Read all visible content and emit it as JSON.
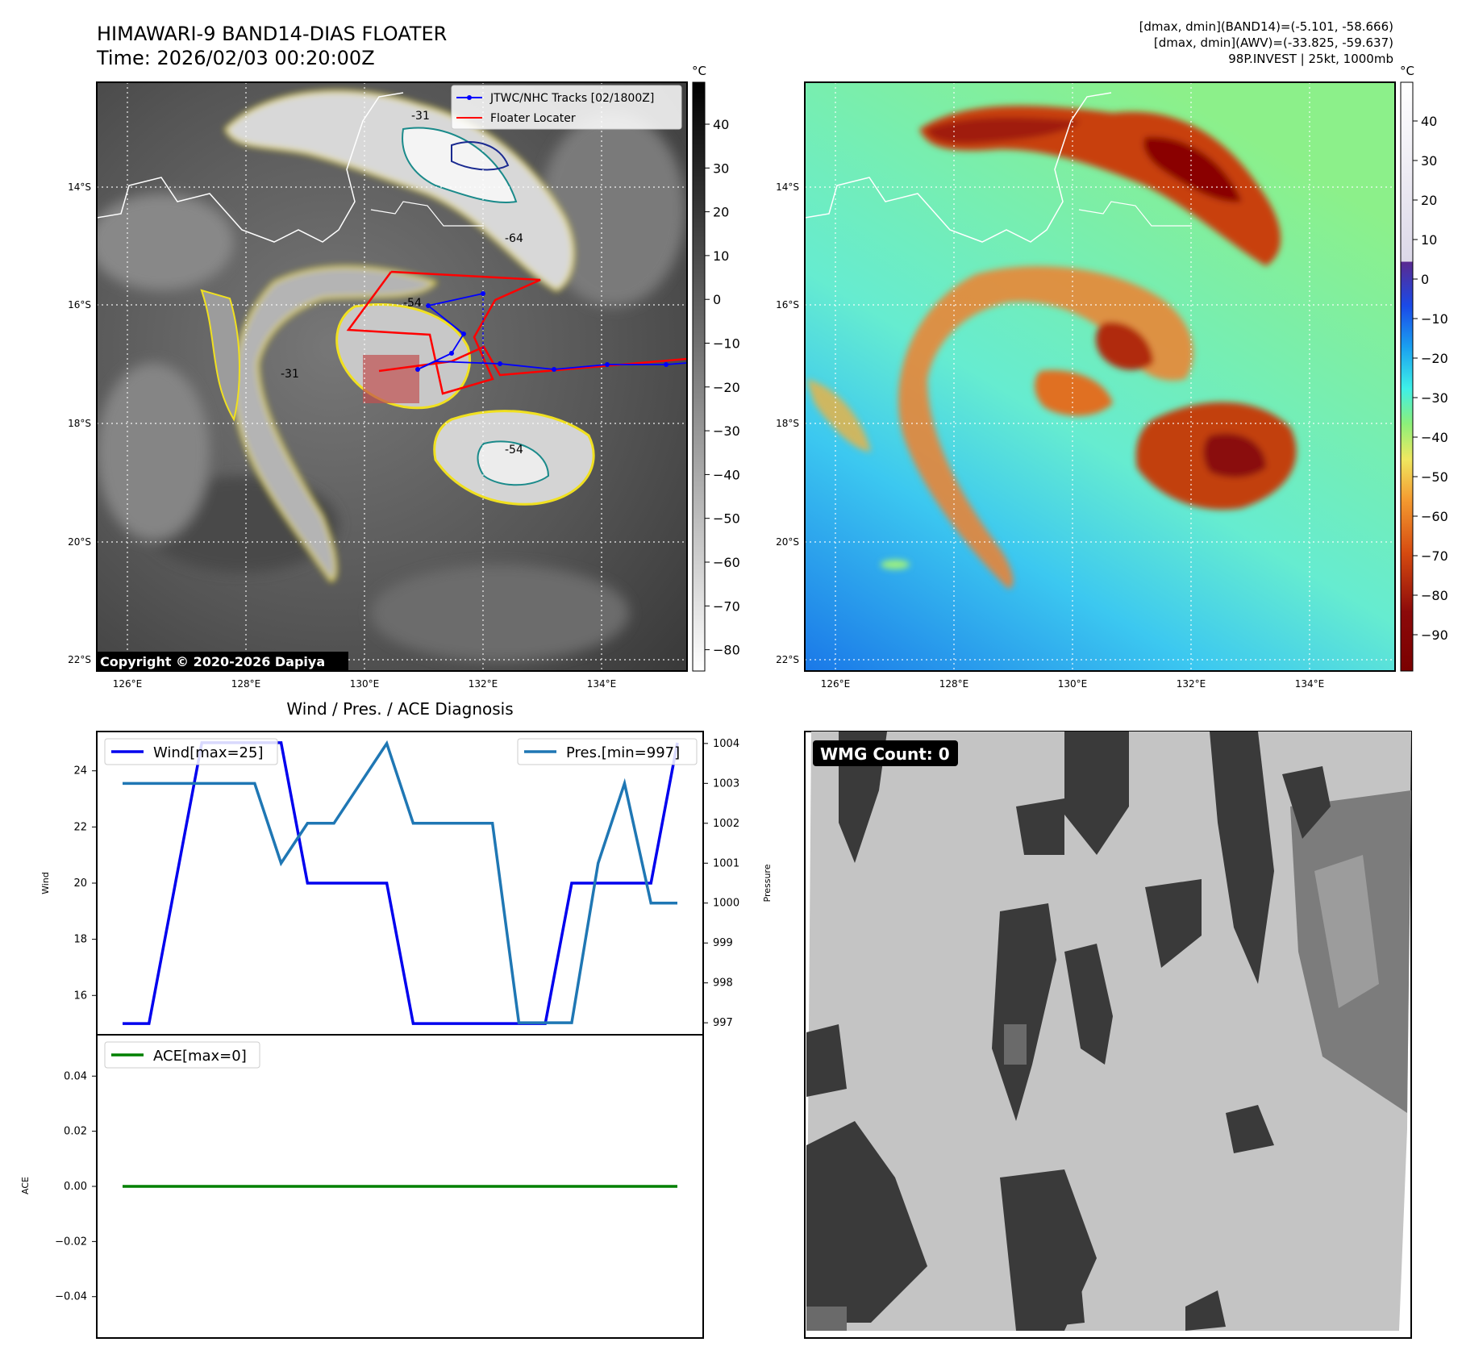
{
  "header": {
    "title": "HIMAWARI-9 BAND14-DIAS FLOATER",
    "time": "Time: 2026/02/03 00:20:00Z",
    "stats_band14": "[dmax, dmin](BAND14)=(-5.101, -58.666)",
    "stats_awv": "[dmax, dmin](AWV)=(-33.825, -59.637)",
    "storm_info": "98P.INVEST | 25kt, 1000mb"
  },
  "map_ir": {
    "legend_tracks": "JTWC/NHC Tracks [02/1800Z]",
    "legend_floater": "Floater Locater",
    "copyright": "Copyright © 2020-2026 Dapiya",
    "lon_labels": [
      "126°E",
      "128°E",
      "130°E",
      "132°E",
      "134°E"
    ],
    "lat_labels": [
      "14°S",
      "16°S",
      "18°S",
      "20°S",
      "22°S"
    ],
    "contour_labels": [
      "-31",
      "-54",
      "-64",
      "-31",
      "-54"
    ],
    "colorbar_unit": "°C",
    "colorbar_ticks": [
      "40",
      "30",
      "20",
      "10",
      "0",
      "−10",
      "−20",
      "−30",
      "−40",
      "−50",
      "−60",
      "−70",
      "−80"
    ],
    "track_color": "#0000ff",
    "floater_color": "#ff0000"
  },
  "map_awv": {
    "lon_labels": [
      "126°E",
      "128°E",
      "130°E",
      "132°E",
      "134°E"
    ],
    "lat_labels": [
      "14°S",
      "16°S",
      "18°S",
      "20°S",
      "22°S"
    ],
    "colorbar_unit": "°C",
    "colorbar_ticks": [
      "40",
      "30",
      "20",
      "10",
      "0",
      "−10",
      "−20",
      "−30",
      "−40",
      "−50",
      "−60",
      "−70",
      "−80",
      "−90"
    ]
  },
  "chart_data": [
    {
      "type": "line",
      "title": "Wind / Pres. / ACE Diagnosis",
      "ylabel": "Wind",
      "y2label": "Pressure",
      "ylim": [
        14.6,
        25.4
      ],
      "y2lim": [
        996.7,
        1004.3
      ],
      "yticks": [
        16,
        18,
        20,
        22,
        24
      ],
      "y2ticks": [
        997,
        998,
        999,
        1000,
        1001,
        1002,
        1003,
        1004
      ],
      "x": [
        0,
        1,
        2,
        3,
        4,
        5,
        6,
        7,
        8,
        9,
        10,
        11,
        12,
        13,
        14,
        15,
        16,
        17,
        18,
        19,
        20,
        21
      ],
      "series": [
        {
          "name": "Wind[max=25]",
          "axis": "left",
          "color": "#0000ee",
          "values": [
            15,
            15,
            20,
            25,
            25,
            25,
            25,
            20,
            20,
            20,
            20,
            15,
            15,
            15,
            15,
            15,
            15,
            20,
            20,
            20,
            20,
            25
          ]
        },
        {
          "name": "Pres.[min=997]",
          "axis": "right",
          "color": "#1f77b4",
          "values": [
            1003,
            1003,
            1003,
            1003,
            1003,
            1003,
            1001,
            1002,
            1002,
            1003,
            1004,
            1002,
            1002,
            1002,
            1002,
            997,
            997,
            997,
            1001,
            1003,
            1000,
            1000
          ]
        }
      ],
      "legend": [
        "top-left",
        "top-right"
      ]
    },
    {
      "type": "line",
      "ylabel": "ACE",
      "ylim": [
        -0.055,
        0.055
      ],
      "yticks": [
        0.04,
        0.02,
        0.0,
        -0.02,
        -0.04
      ],
      "ytick_labels": [
        "0.04",
        "0.02",
        "0.00",
        "−0.02",
        "−0.04"
      ],
      "x": [
        0,
        21
      ],
      "series": [
        {
          "name": "ACE[max=0]",
          "color": "#008000",
          "values": [
            0,
            0
          ]
        }
      ],
      "legend": "top-left"
    }
  ],
  "wmg": {
    "label": "WMG Count: 0"
  }
}
